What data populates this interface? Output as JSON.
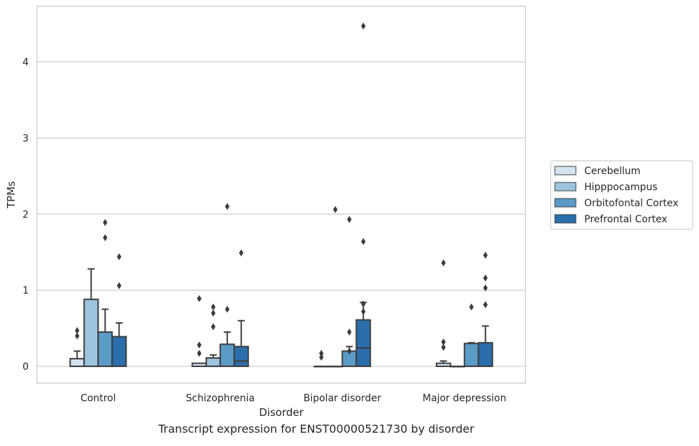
{
  "caption": "Transcript expression for ENST00000521730 by disorder",
  "chart_data": {
    "type": "box",
    "xlabel": "Disorder",
    "ylabel": "TPMs",
    "categories": [
      "Control",
      "Schizophrenia",
      "Bipolar disorder",
      "Major depression"
    ],
    "yticks": [
      0,
      1,
      2,
      3,
      4
    ],
    "ylim": [
      -0.22,
      4.73
    ],
    "grid": "horizontal",
    "legend_position": "right",
    "series": [
      {
        "name": "Cerebellum",
        "color": "#d5e3f1",
        "boxes": [
          {
            "q1": 0.0,
            "median": 0.0,
            "q3": 0.1,
            "whisker_low": 0.0,
            "whisker_high": 0.2,
            "outliers": [
              0.47,
              0.4
            ]
          },
          {
            "q1": 0.0,
            "median": 0.0,
            "q3": 0.04,
            "whisker_low": 0.0,
            "whisker_high": 0.04,
            "outliers": [
              0.89,
              0.28,
              0.17
            ]
          },
          {
            "q1": 0.0,
            "median": 0.0,
            "q3": 0.0,
            "whisker_low": 0.0,
            "whisker_high": 0.0,
            "outliers": [
              0.17,
              0.12
            ]
          },
          {
            "q1": 0.0,
            "median": 0.0,
            "q3": 0.04,
            "whisker_low": 0.0,
            "whisker_high": 0.07,
            "outliers": [
              1.36,
              0.32,
              0.25
            ]
          }
        ]
      },
      {
        "name": "Hipppocampus",
        "color": "#9cc4de",
        "boxes": [
          {
            "q1": 0.0,
            "median": 0.0,
            "q3": 0.88,
            "whisker_low": 0.0,
            "whisker_high": 1.28,
            "outliers": []
          },
          {
            "q1": 0.0,
            "median": 0.0,
            "q3": 0.11,
            "whisker_low": 0.0,
            "whisker_high": 0.15,
            "outliers": [
              0.78,
              0.7,
              0.52
            ]
          },
          {
            "q1": 0.0,
            "median": 0.0,
            "q3": 0.0,
            "whisker_low": 0.0,
            "whisker_high": 0.0,
            "outliers": [
              2.06
            ]
          },
          {
            "q1": 0.0,
            "median": 0.0,
            "q3": 0.0,
            "whisker_low": 0.0,
            "whisker_high": 0.0,
            "outliers": []
          }
        ]
      },
      {
        "name": "Orbitofontal Cortex",
        "color": "#5a9bc8",
        "boxes": [
          {
            "q1": 0.0,
            "median": 0.0,
            "q3": 0.45,
            "whisker_low": 0.0,
            "whisker_high": 0.75,
            "outliers": [
              1.89,
              1.69
            ]
          },
          {
            "q1": 0.0,
            "median": 0.0,
            "q3": 0.29,
            "whisker_low": 0.0,
            "whisker_high": 0.45,
            "outliers": [
              2.1,
              0.75
            ]
          },
          {
            "q1": 0.0,
            "median": 0.0,
            "q3": 0.2,
            "whisker_low": 0.0,
            "whisker_high": 0.26,
            "outliers": [
              1.93,
              0.45,
              0.2
            ]
          },
          {
            "q1": 0.0,
            "median": 0.0,
            "q3": 0.3,
            "whisker_low": 0.0,
            "whisker_high": 0.31,
            "outliers": [
              0.78
            ]
          }
        ]
      },
      {
        "name": "Prefrontal Cortex",
        "color": "#2a6eab",
        "boxes": [
          {
            "q1": 0.0,
            "median": 0.0,
            "q3": 0.39,
            "whisker_low": 0.0,
            "whisker_high": 0.57,
            "outliers": [
              1.44,
              1.06
            ]
          },
          {
            "q1": 0.0,
            "median": 0.07,
            "q3": 0.26,
            "whisker_low": 0.0,
            "whisker_high": 0.6,
            "outliers": [
              1.49
            ]
          },
          {
            "q1": 0.0,
            "median": 0.24,
            "q3": 0.61,
            "whisker_low": 0.0,
            "whisker_high": 0.84,
            "outliers": [
              4.47,
              1.64,
              0.82,
              0.72
            ]
          },
          {
            "q1": 0.0,
            "median": 0.0,
            "q3": 0.31,
            "whisker_low": 0.0,
            "whisker_high": 0.53,
            "outliers": [
              1.46,
              1.16,
              1.03,
              0.81
            ]
          }
        ]
      }
    ]
  }
}
